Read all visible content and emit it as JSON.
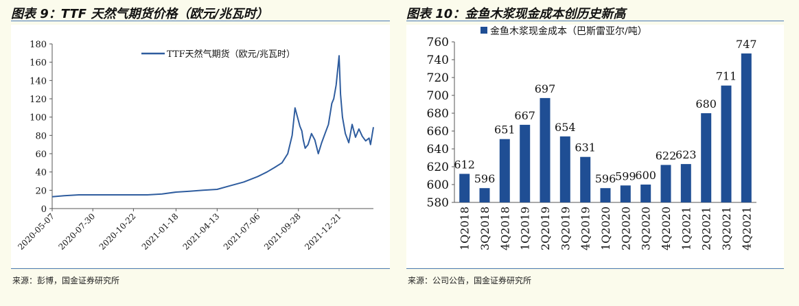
{
  "left": {
    "title": "图表 9：TTF 天然气期货价格（欧元/兆瓦时）",
    "source": "来源：彭博，国金证券研究所"
  },
  "right": {
    "title": "图表 10：金鱼木浆现金成本创历史新高",
    "source": "来源：公司公告，国金证券研究所"
  },
  "chart_data": [
    {
      "type": "line",
      "series": [
        {
          "name": "TTF天然气期货（欧元/兆瓦时）",
          "x": [
            "2020-05-07",
            "2020-06-01",
            "2020-07-01",
            "2020-07-30",
            "2020-09-01",
            "2020-10-22",
            "2020-11-20",
            "2020-12-20",
            "2021-01-18",
            "2021-02-15",
            "2021-03-15",
            "2021-04-13",
            "2021-05-10",
            "2021-06-07",
            "2021-07-06",
            "2021-07-25",
            "2021-08-10",
            "2021-08-25",
            "2021-09-06",
            "2021-09-15",
            "2021-09-21",
            "2021-09-28",
            "2021-10-01",
            "2021-10-05",
            "2021-10-08",
            "2021-10-12",
            "2021-10-18",
            "2021-10-25",
            "2021-11-01",
            "2021-11-08",
            "2021-11-15",
            "2021-11-22",
            "2021-11-29",
            "2021-12-06",
            "2021-12-10",
            "2021-12-15",
            "2021-12-21",
            "2021-12-24",
            "2021-12-28",
            "2022-01-03",
            "2022-01-10",
            "2022-01-17",
            "2022-01-24",
            "2022-01-31",
            "2022-02-07",
            "2022-02-14",
            "2022-02-21",
            "2022-02-24",
            "2022-03-02"
          ],
          "values": [
            13,
            14,
            15,
            15,
            15,
            15,
            15,
            16,
            18,
            19,
            20,
            21,
            25,
            29,
            35,
            40,
            45,
            50,
            60,
            80,
            110,
            96,
            90,
            85,
            75,
            66,
            70,
            82,
            75,
            60,
            72,
            82,
            92,
            115,
            120,
            135,
            167,
            125,
            100,
            82,
            72,
            92,
            78,
            87,
            79,
            74,
            77,
            70,
            89
          ]
        }
      ],
      "xlabel": "",
      "ylabel": "",
      "ylim": [
        0,
        180
      ],
      "yticks": [
        "0",
        "20",
        "40",
        "60",
        "80",
        "100",
        "120",
        "140",
        "160",
        "180"
      ],
      "xticks": [
        "2020-05-07",
        "2020-07-30",
        "2020-10-22",
        "2021-01-18",
        "2021-04-13",
        "2021-07-06",
        "2021-09-28",
        "2021-12-21"
      ],
      "color": "#2e5c9e",
      "legend": "top-right",
      "grid": false
    },
    {
      "type": "bar",
      "categories": [
        "1Q2018",
        "3Q2018",
        "4Q2018",
        "1Q2019",
        "2Q2019",
        "3Q2019",
        "4Q2019",
        "1Q2020",
        "2Q2020",
        "3Q2020",
        "4Q2020",
        "1Q2021",
        "2Q2021",
        "3Q2021",
        "4Q2021"
      ],
      "series": [
        {
          "name": "金鱼木浆现金成本（巴斯雷亚尔/吨）",
          "values": [
            612,
            596,
            651,
            667,
            697,
            654,
            631,
            596,
            599,
            600,
            622,
            623,
            680,
            711,
            747
          ]
        }
      ],
      "data_labels": [
        "612",
        "596",
        "651",
        "667",
        "697",
        "654",
        "631",
        "596",
        "599",
        "600",
        "622",
        "623",
        "680",
        "711",
        "747"
      ],
      "ylim": [
        580,
        760
      ],
      "yticks": [
        "580",
        "600",
        "620",
        "640",
        "660",
        "680",
        "700",
        "720",
        "740",
        "760"
      ],
      "color": "#1f4e94",
      "legend": "top-left",
      "grid": false
    }
  ]
}
